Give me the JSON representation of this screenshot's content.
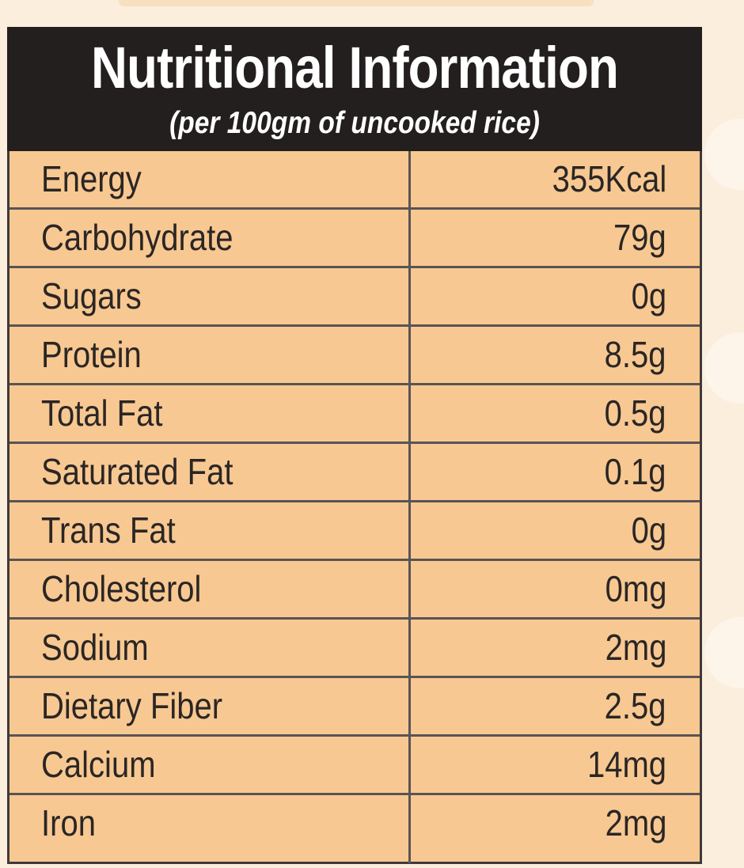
{
  "panel": {
    "title": "Nutritional Information",
    "subtitle": "(per 100gm of uncooked rice)"
  },
  "nutrients": [
    {
      "label": "Energy",
      "value": "355Kcal"
    },
    {
      "label": "Carbohydrate",
      "value": "79g"
    },
    {
      "label": "Sugars",
      "value": "0g"
    },
    {
      "label": "Protein",
      "value": "8.5g"
    },
    {
      "label": "Total Fat",
      "value": "0.5g"
    },
    {
      "label": "Saturated Fat",
      "value": "0.1g"
    },
    {
      "label": "Trans Fat",
      "value": "0g"
    },
    {
      "label": "Cholesterol",
      "value": "0mg"
    },
    {
      "label": "Sodium",
      "value": "2mg"
    },
    {
      "label": "Dietary Fiber",
      "value": "2.5g"
    },
    {
      "label": "Calcium",
      "value": "14mg"
    },
    {
      "label": "Iron",
      "value": "2mg"
    }
  ],
  "colors": {
    "header_background": "#231f1e",
    "table_background": "#f8c892",
    "page_background": "#fbeedd"
  }
}
